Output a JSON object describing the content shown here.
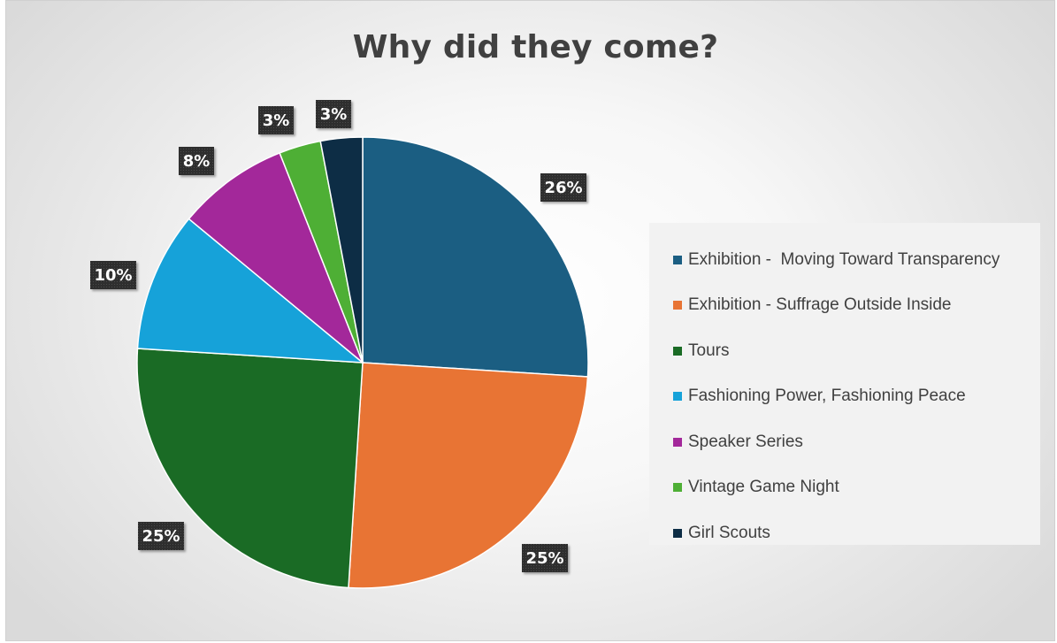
{
  "chart_data": {
    "type": "pie",
    "title": "Why did they come?",
    "categories": [
      "Exhibition -  Moving Toward Transparency",
      "Exhibition - Suffrage Outside Inside",
      "Tours",
      "Fashioning Power, Fashioning Peace",
      "Speaker Series",
      "Vintage Game Night",
      "Girl Scouts"
    ],
    "values": [
      26,
      25,
      25,
      10,
      8,
      3,
      3
    ],
    "data_labels": [
      "26%",
      "25%",
      "25%",
      "10%",
      "8%",
      "3%",
      "3%"
    ],
    "colors": [
      "#1b5e82",
      "#e87434",
      "#1a6b25",
      "#16a2d9",
      "#a3289a",
      "#4eaf35",
      "#0d2d45"
    ],
    "legend_position": "right",
    "start_angle": "12 o'clock",
    "direction": "clockwise"
  }
}
